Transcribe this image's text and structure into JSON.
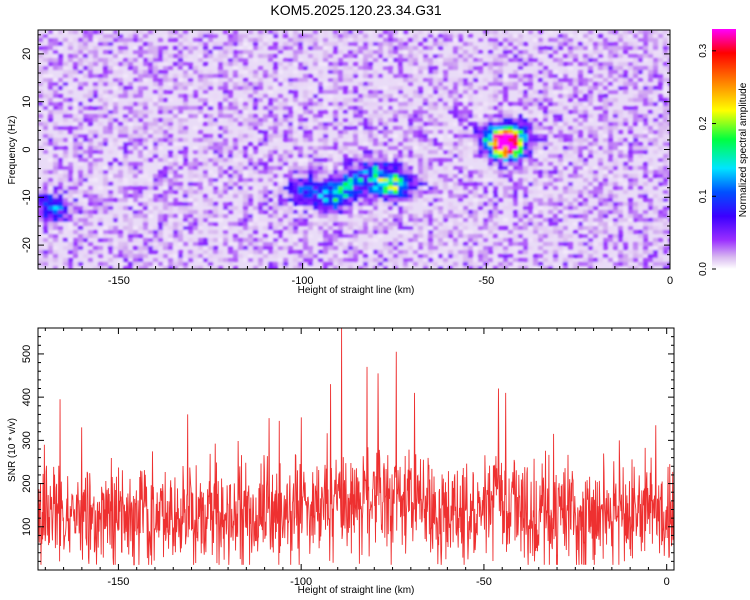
{
  "title": "KOM5.2025.120.23.34.G31",
  "chart_data": [
    {
      "type": "heatmap",
      "xlabel": "Height of straight line (km)",
      "ylabel": "Frequency (Hz)",
      "xlim": [
        -172,
        0
      ],
      "ylim": [
        -25,
        25
      ],
      "xticks": [
        -150,
        -100,
        -50,
        0
      ],
      "yticks": [
        -20,
        -10,
        0,
        10,
        20
      ],
      "colorbar": {
        "label": "Normalized spectral amplitude",
        "range": [
          0,
          0.33
        ],
        "ticks": [
          0.0,
          0.1,
          0.2,
          0.3
        ],
        "colormap": [
          "#ffffff",
          "#d8b8f0",
          "#9b30ff",
          "#3b00ff",
          "#0050ff",
          "#00e5ff",
          "#00ff40",
          "#ffff00",
          "#ff8000",
          "#ff0000",
          "#ff00ff"
        ]
      },
      "hotspots": [
        {
          "x": -45,
          "y": 1,
          "value": 0.33
        },
        {
          "x": -48,
          "y": 3,
          "value": 0.15
        },
        {
          "x": -43,
          "y": 4,
          "value": 0.12
        },
        {
          "x": -88,
          "y": -7,
          "value": 0.14
        },
        {
          "x": -78,
          "y": -7,
          "value": 0.13
        },
        {
          "x": -74,
          "y": -7,
          "value": 0.12
        },
        {
          "x": -100,
          "y": -8,
          "value": 0.12
        },
        {
          "x": -93,
          "y": -10,
          "value": 0.12
        },
        {
          "x": -81,
          "y": -4,
          "value": 0.11
        },
        {
          "x": -169,
          "y": -12,
          "value": 0.13
        }
      ]
    },
    {
      "type": "line",
      "xlabel": "Height of straight line (km)",
      "ylabel": "SNR (10 * v/v)",
      "xlim": [
        -172,
        2
      ],
      "ylim": [
        0,
        560
      ],
      "xticks": [
        -150,
        -100,
        -50,
        0
      ],
      "yticks": [
        100,
        200,
        300,
        400,
        500
      ],
      "series": [
        {
          "color": "#ee3030",
          "baseline": 125,
          "spikes": [
            {
              "x": -89,
              "y": 560
            },
            {
              "x": -74,
              "y": 505
            },
            {
              "x": -82,
              "y": 470
            },
            {
              "x": -79,
              "y": 455
            },
            {
              "x": -92,
              "y": 430
            },
            {
              "x": -69,
              "y": 410
            },
            {
              "x": -46,
              "y": 420
            },
            {
              "x": -44,
              "y": 410
            },
            {
              "x": -166,
              "y": 395
            },
            {
              "x": -131,
              "y": 360
            },
            {
              "x": -160,
              "y": 330
            },
            {
              "x": -106,
              "y": 345
            },
            {
              "x": -31,
              "y": 315
            },
            {
              "x": -13,
              "y": 300
            },
            {
              "x": -3,
              "y": 335
            }
          ]
        }
      ]
    }
  ]
}
